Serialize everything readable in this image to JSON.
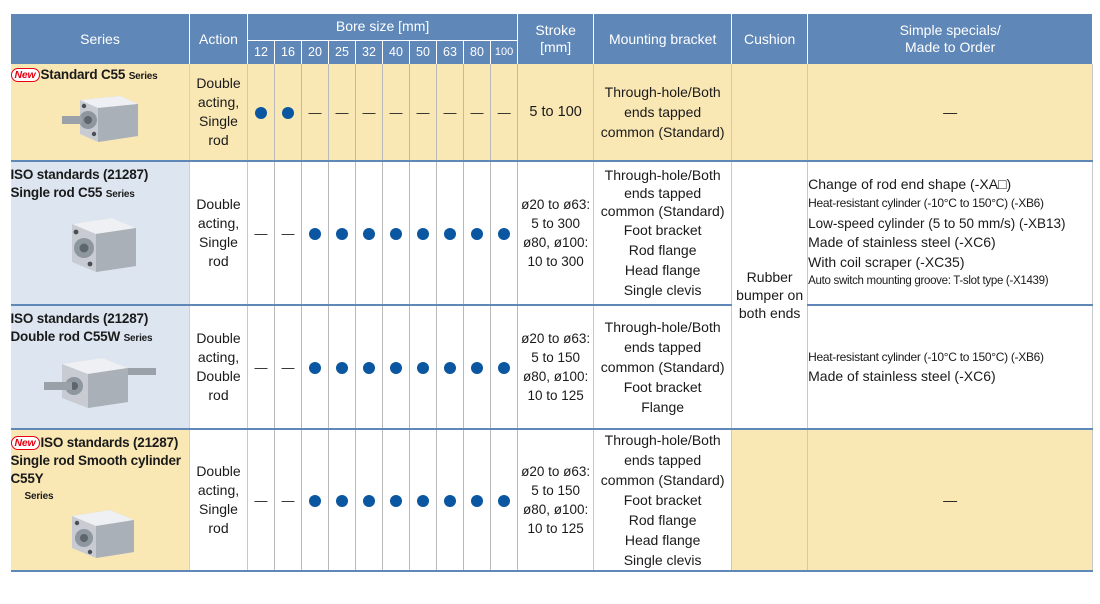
{
  "header": {
    "series": "Series",
    "action": "Action",
    "bore": "Bore size [mm]",
    "bores": [
      "12",
      "16",
      "20",
      "25",
      "32",
      "40",
      "50",
      "63",
      "80",
      "100"
    ],
    "stroke_l1": "Stroke",
    "stroke_l2": "[mm]",
    "mounting": "Mounting bracket",
    "cushion": "Cushion",
    "specials_l1": "Simple specials/",
    "specials_l2": "Made to Order"
  },
  "marks": {
    "dot": "●",
    "dash": "—"
  },
  "new_badge": "New",
  "series_word": "Series",
  "rows": [
    {
      "title_lines": [
        "Standard C55"
      ],
      "action_lines": [
        "Double",
        "acting,",
        "Single",
        "rod"
      ],
      "bores": [
        1,
        1,
        0,
        0,
        0,
        0,
        0,
        0,
        0,
        0
      ],
      "stroke_lines": [
        "5 to 100"
      ],
      "mount_lines": [
        "Through-hole/Both",
        "ends tapped",
        "common (Standard)"
      ],
      "specials": "—"
    },
    {
      "title_lines": [
        "ISO standards (21287)",
        "Single rod C55"
      ],
      "action_lines": [
        "Double",
        "acting,",
        "Single",
        "rod"
      ],
      "bores": [
        0,
        0,
        1,
        1,
        1,
        1,
        1,
        1,
        1,
        1
      ],
      "stroke_lines": [
        "ø20 to ø63:",
        "5 to 300",
        "ø80, ø100:",
        "10 to 300"
      ],
      "mount_lines": [
        "Through-hole/Both",
        "ends tapped",
        "common (Standard)",
        "Foot bracket",
        "Rod flange",
        "Head flange",
        "Single clevis"
      ],
      "spec_lines": [
        "Change of rod end shape (-XA□)",
        "Heat-resistant cylinder (-10°C to 150°C) (-XB6)",
        "Low-speed cylinder (5 to 50 mm/s) (-XB13)",
        "Made of stainless steel (-XC6)",
        "With coil scraper (-XC35)",
        "Auto switch mounting groove: T-slot type (-X1439)"
      ]
    },
    {
      "title_lines": [
        "ISO standards (21287)",
        "Double rod C55W"
      ],
      "action_lines": [
        "Double",
        "acting,",
        "Double",
        "rod"
      ],
      "bores": [
        0,
        0,
        1,
        1,
        1,
        1,
        1,
        1,
        1,
        1
      ],
      "stroke_lines": [
        "ø20 to ø63:",
        "5 to 150",
        "ø80, ø100:",
        "10 to 125"
      ],
      "mount_lines": [
        "Through-hole/Both",
        "ends tapped",
        "common (Standard)",
        "Foot bracket",
        "Flange"
      ],
      "spec_lines": [
        "Heat-resistant cylinder (-10°C to 150°C) (-XB6)",
        "Made of stainless steel (-XC6)"
      ]
    },
    {
      "title_lines": [
        "ISO standards (21287)",
        "Single rod Smooth cylinder",
        "C55Y"
      ],
      "action_lines": [
        "Double",
        "acting,",
        "Single",
        "rod"
      ],
      "bores": [
        0,
        0,
        1,
        1,
        1,
        1,
        1,
        1,
        1,
        1
      ],
      "stroke_lines": [
        "ø20 to ø63:",
        "5 to 150",
        "ø80, ø100:",
        "10 to 125"
      ],
      "mount_lines": [
        "Through-hole/Both",
        "ends tapped",
        "common (Standard)",
        "Foot bracket",
        "Rod flange",
        "Head flange",
        "Single clevis"
      ],
      "specials": "—"
    }
  ],
  "cushion_lines": [
    "Rubber",
    "bumper on",
    "both ends"
  ],
  "colors": {
    "header": "#5f87b8",
    "highlight_row": "#f9e7b4",
    "series_cell": "#dde6f0",
    "dot": "#0a56a0",
    "new_badge": "#e60012"
  }
}
